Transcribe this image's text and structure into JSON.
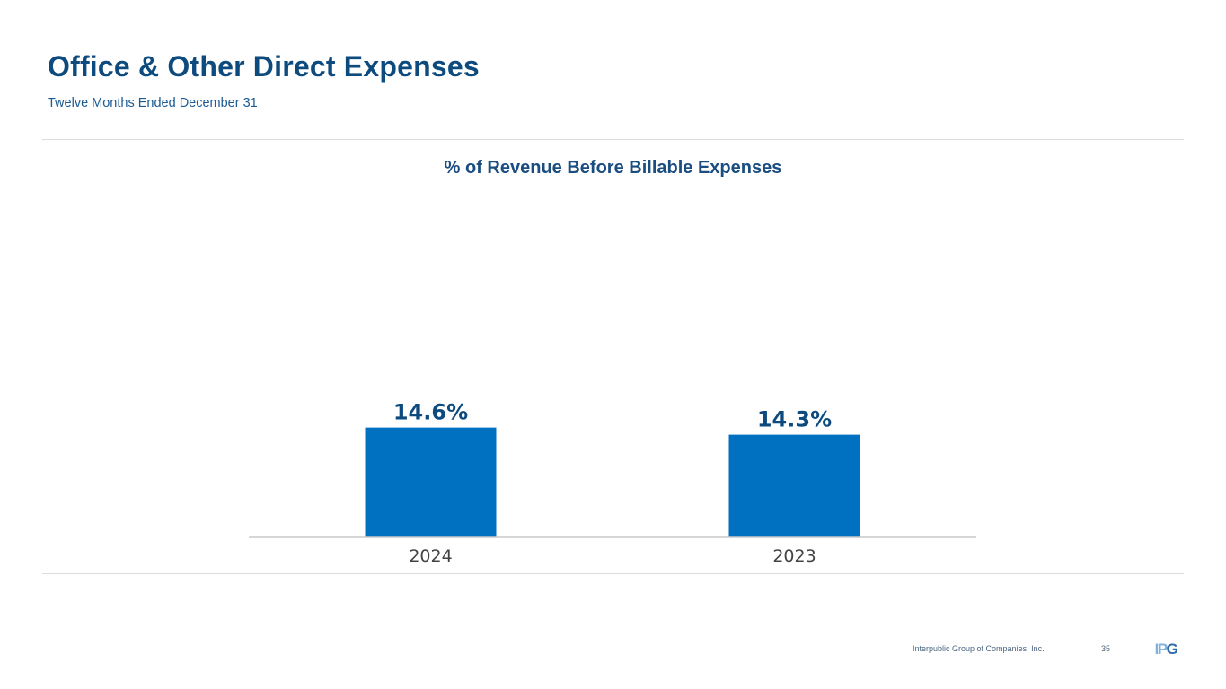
{
  "header": {
    "title": "Office & Other Direct Expenses",
    "subtitle": "Twelve Months Ended December 31"
  },
  "chart_data": {
    "type": "bar",
    "title": "% of Revenue Before Billable Expenses",
    "categories": [
      "2024",
      "2023"
    ],
    "values": [
      14.6,
      14.3
    ],
    "value_labels": [
      "14.6%",
      "14.3%"
    ],
    "xlabel": "",
    "ylabel": "",
    "ylim": [
      10,
      15
    ],
    "grid": false,
    "legend": "none",
    "bar_color": "#0070c0"
  },
  "footer": {
    "company": "Interpublic Group of Companies, Inc.",
    "page_number": "35",
    "logo_text": "IPG"
  },
  "colors": {
    "title": "#0d4a7e",
    "accent": "#0070c0",
    "logo_light": "#7fb1e0",
    "logo_dark": "#2f6aa8"
  }
}
